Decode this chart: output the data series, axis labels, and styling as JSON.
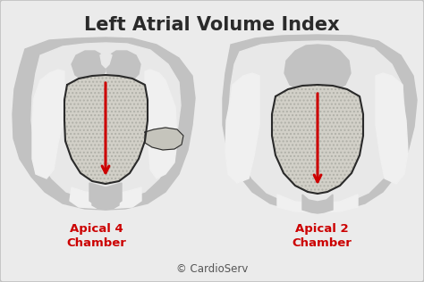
{
  "title": "Left Atrial Volume Index",
  "title_fontsize": 15,
  "title_fontweight": "bold",
  "title_color": "#2a2a2a",
  "bg_color": "#ebebeb",
  "border_color": "#c0c0c0",
  "label_left": "Apical 4\nChamber",
  "label_right": "Apical 2\nChamber",
  "label_color": "#cc0000",
  "label_fontsize": 9.5,
  "label_fontweight": "bold",
  "copyright_text": "© CardioServ",
  "copyright_fontsize": 8.5,
  "copyright_color": "#555555",
  "arrow_color": "#cc0000",
  "outline_color": "#2a2a2a",
  "outer_gray": "#c2c2c2",
  "inner_white": "#e8e8e8",
  "channel_white": "#f0f0f0",
  "atrium_fill": "#d2d0c8",
  "atrium_edge": "#c8c8c0"
}
